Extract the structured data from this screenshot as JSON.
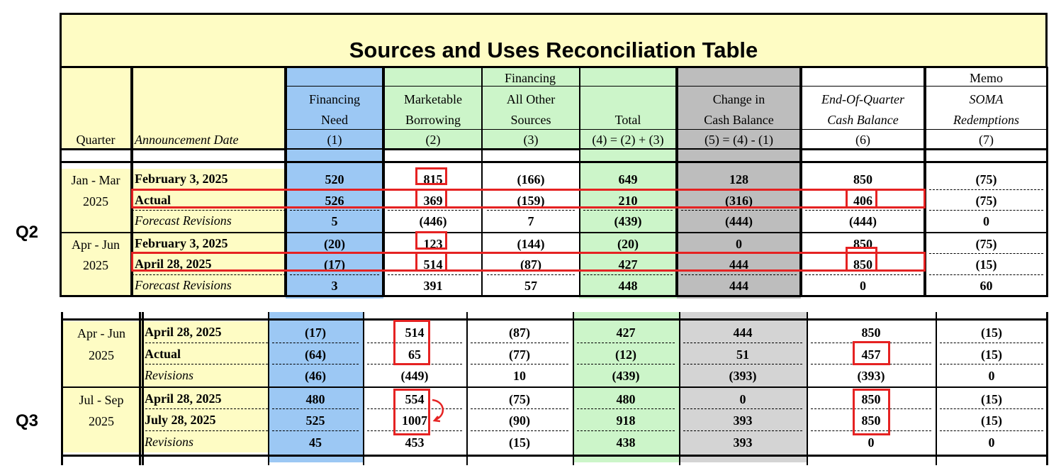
{
  "title": "Sources and Uses Reconciliation Table",
  "side_labels": {
    "q2": "Q2",
    "q3": "Q3"
  },
  "header": {
    "financing_group": "Financing",
    "memo_group": "Memo",
    "quarter": "Quarter",
    "announcement_date": "Announcement Date",
    "col1": [
      "Financing",
      "Need",
      "(1)"
    ],
    "col2": [
      "Marketable",
      "Borrowing",
      "(2)"
    ],
    "col3": [
      "All Other",
      "Sources",
      "(3)"
    ],
    "col4": [
      "Total",
      "(4) = (2) + (3)"
    ],
    "col5": [
      "Change in",
      "Cash Balance",
      "(5) = (4) - (1)"
    ],
    "col6": [
      "End-Of-Quarter",
      "Cash Balance",
      "(6)"
    ],
    "col7": [
      "SOMA",
      "Redemptions",
      "(7)"
    ]
  },
  "q2_table": {
    "groups": [
      {
        "quarter": [
          "Jan - Mar",
          "2025"
        ],
        "rows": [
          {
            "label": "February 3, 2025",
            "values": [
              "520",
              "815",
              "(166)",
              "649",
              "128",
              "850",
              "(75)"
            ]
          },
          {
            "label": "Actual",
            "values": [
              "526",
              "369",
              "(159)",
              "210",
              "(316)",
              "406",
              "(75)"
            ]
          },
          {
            "label": "Forecast Revisions",
            "values": [
              "5",
              "(446)",
              "7",
              "(439)",
              "(444)",
              "(444)",
              "0"
            ]
          }
        ]
      },
      {
        "quarter": [
          "Apr - Jun",
          "2025"
        ],
        "rows": [
          {
            "label": "February 3, 2025",
            "values": [
              "(20)",
              "123",
              "(144)",
              "(20)",
              "0",
              "850",
              "(75)"
            ]
          },
          {
            "label": "April 28, 2025",
            "values": [
              "(17)",
              "514",
              "(87)",
              "427",
              "444",
              "850",
              "(15)"
            ]
          },
          {
            "label": "Forecast Revisions",
            "values": [
              "3",
              "391",
              "57",
              "448",
              "444",
              "0",
              "60"
            ]
          }
        ]
      }
    ]
  },
  "q3_table": {
    "groups": [
      {
        "quarter": [
          "Apr - Jun",
          "2025"
        ],
        "rows": [
          {
            "label": "April 28, 2025",
            "values": [
              "(17)",
              "514",
              "(87)",
              "427",
              "444",
              "850",
              "(15)"
            ]
          },
          {
            "label": "Actual",
            "values": [
              "(64)",
              "65",
              "(77)",
              "(12)",
              "51",
              "457",
              "(15)"
            ]
          },
          {
            "label": "Revisions",
            "values": [
              "(46)",
              "(449)",
              "10",
              "(439)",
              "(393)",
              "(393)",
              "0"
            ]
          }
        ]
      },
      {
        "quarter": [
          "Jul - Sep",
          "2025"
        ],
        "rows": [
          {
            "label": "April 28, 2025",
            "values": [
              "480",
              "554",
              "(75)",
              "480",
              "0",
              "850",
              "(15)"
            ]
          },
          {
            "label": "July 28, 2025",
            "values": [
              "525",
              "1007",
              "(90)",
              "918",
              "393",
              "850",
              "(15)"
            ]
          },
          {
            "label": "Revisions",
            "values": [
              "45",
              "453",
              "(15)",
              "438",
              "393",
              "0",
              "0"
            ]
          }
        ]
      }
    ]
  },
  "colors": {
    "highlight": "#e52222",
    "yellow": "#fefcc4",
    "blue": "#9cc8f4",
    "green": "#ccf5c9",
    "grey": "#bdbdbd"
  }
}
